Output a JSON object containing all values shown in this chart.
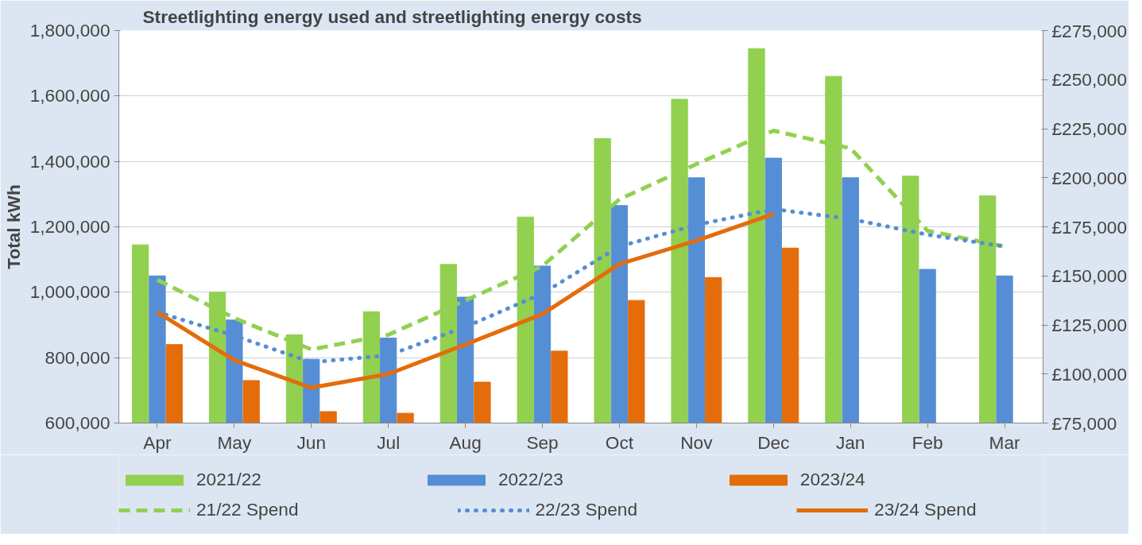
{
  "chart_data": {
    "type": "bar",
    "title": "Streetlighting  energy used and streetlighting  energy costs",
    "ylabel": "Total kWh",
    "categories": [
      "Apr",
      "May",
      "Jun",
      "Jul",
      "Aug",
      "Sep",
      "Oct",
      "Nov",
      "Dec",
      "Jan",
      "Feb",
      "Mar"
    ],
    "series": [
      {
        "name": "2021/22",
        "color": "#92d050",
        "values": [
          1145000,
          1000000,
          870000,
          940000,
          1085000,
          1230000,
          1470000,
          1590000,
          1745000,
          1660000,
          1355000,
          1295000
        ]
      },
      {
        "name": "2022/23",
        "color": "#558ed5",
        "values": [
          1050000,
          915000,
          795000,
          860000,
          985000,
          1080000,
          1265000,
          1350000,
          1410000,
          1350000,
          1070000,
          1050000
        ]
      },
      {
        "name": "2023/24",
        "color": "#e46c0a",
        "values": [
          840000,
          730000,
          635000,
          630000,
          725000,
          820000,
          975000,
          1045000,
          1135000,
          null,
          null,
          null
        ]
      },
      {
        "name": "21/22 Spend",
        "type": "line",
        "axis": "y2",
        "line_style": "dashed",
        "color": "#92d050",
        "values": [
          148000,
          128500,
          112500,
          120000,
          137500,
          155000,
          189000,
          207000,
          224000,
          215000,
          173000,
          165000
        ]
      },
      {
        "name": "22/23 Spend",
        "type": "line",
        "axis": "y2",
        "line_style": "dotted",
        "color": "#558ed5",
        "values": [
          131500,
          119500,
          106000,
          109500,
          124000,
          141000,
          165000,
          176000,
          184000,
          179000,
          171000,
          165000
        ]
      },
      {
        "name": "23/24 Spend",
        "type": "line",
        "axis": "y2",
        "line_style": "solid",
        "color": "#e46c0a",
        "values": [
          131500,
          107000,
          93000,
          100000,
          115000,
          130500,
          156000,
          168000,
          181500,
          null,
          null,
          null
        ]
      }
    ],
    "ylim": [
      600000,
      1800000
    ],
    "yticks": [
      {
        "value": 600000,
        "label": "600,000"
      },
      {
        "value": 800000,
        "label": "800,000"
      },
      {
        "value": 1000000,
        "label": "1,000,000"
      },
      {
        "value": 1200000,
        "label": "1,200,000"
      },
      {
        "value": 1400000,
        "label": "1,400,000"
      },
      {
        "value": 1600000,
        "label": "1,600,000"
      },
      {
        "value": 1800000,
        "label": "1,800,000"
      }
    ],
    "y2lim": [
      75000,
      275000
    ],
    "y2ticks": [
      {
        "value": 75000,
        "label": "£75,000"
      },
      {
        "value": 100000,
        "label": "£100,000"
      },
      {
        "value": 125000,
        "label": "£125,000"
      },
      {
        "value": 150000,
        "label": "£150,000"
      },
      {
        "value": 175000,
        "label": "£175,000"
      },
      {
        "value": 200000,
        "label": "£200,000"
      },
      {
        "value": 225000,
        "label": "£225,000"
      },
      {
        "value": 250000,
        "label": "£250,000"
      },
      {
        "value": 275000,
        "label": "£275,000"
      }
    ],
    "grid": "y",
    "legend": "bottom"
  }
}
